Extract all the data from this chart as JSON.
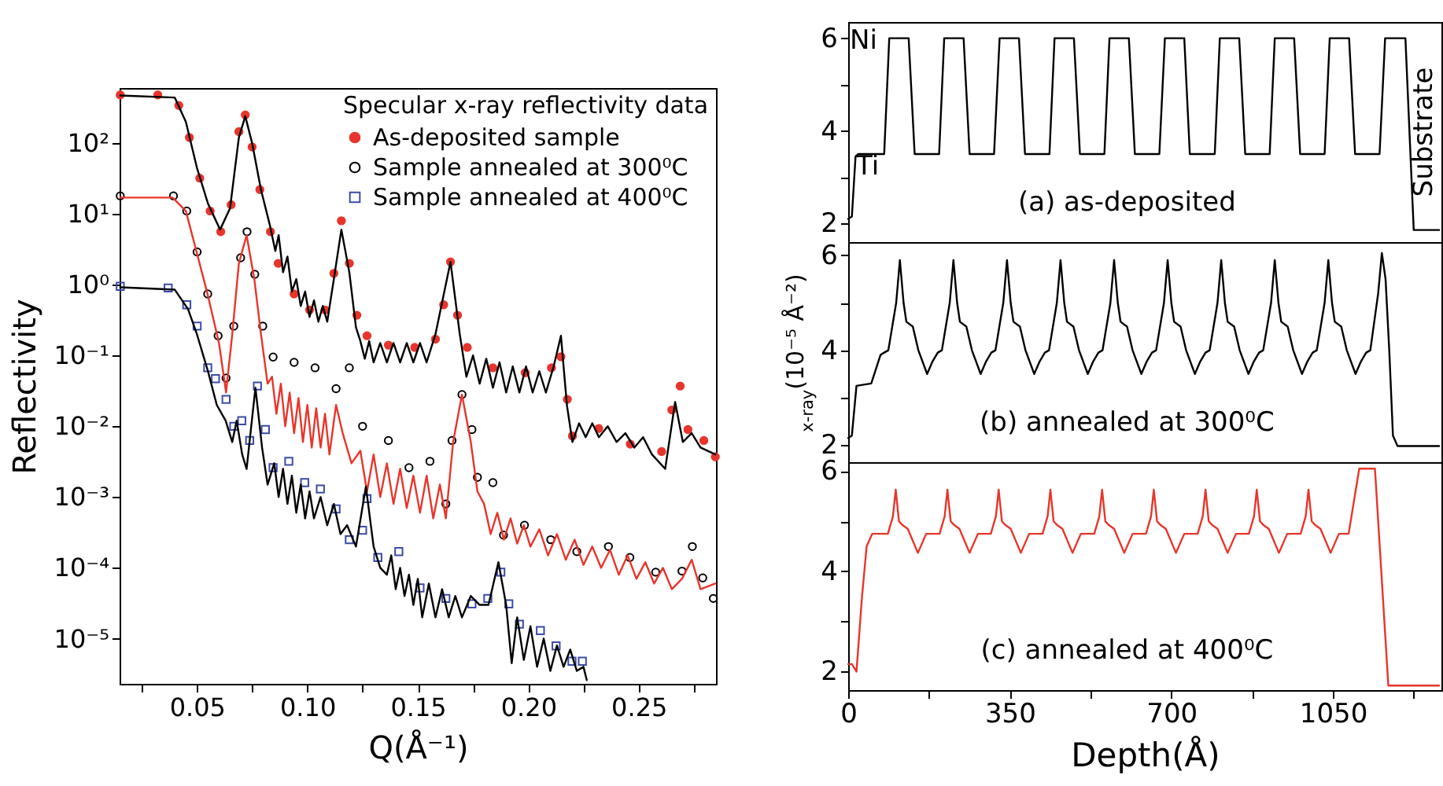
{
  "chart_data": [
    {
      "type": "scatter",
      "xlabel": "Q(Å⁻¹)",
      "ylabel": "Reflectivity",
      "legend_title": "Specular x-ray reflectivity data",
      "legend": "top right",
      "log": "y",
      "xlim": [
        0.015,
        0.285
      ],
      "ylim": [
        2.3e-06,
        600
      ],
      "xticks": [
        {
          "value": 0.025,
          "label": null
        },
        {
          "value": 0.05,
          "label": "0.05"
        },
        {
          "value": 0.075,
          "label": null
        },
        {
          "value": 0.1,
          "label": "0.10"
        },
        {
          "value": 0.125,
          "label": null
        },
        {
          "value": 0.15,
          "label": "0.15"
        },
        {
          "value": 0.175,
          "label": null
        },
        {
          "value": 0.2,
          "label": "0.20"
        },
        {
          "value": 0.225,
          "label": null
        },
        {
          "value": 0.25,
          "label": "0.25"
        },
        {
          "value": 0.275,
          "label": null
        }
      ],
      "yticks": [
        {
          "value": 100,
          "label": "10²"
        },
        {
          "value": 10,
          "label": "10¹"
        },
        {
          "value": 1,
          "label": "10⁰"
        },
        {
          "value": 0.1,
          "label": "10⁻¹"
        },
        {
          "value": 0.01,
          "label": "10⁻²"
        },
        {
          "value": 0.001,
          "label": "10⁻³"
        },
        {
          "value": 0.0001,
          "label": "10⁻⁴"
        },
        {
          "value": 1e-05,
          "label": "10⁻⁵"
        }
      ],
      "series": [
        {
          "name": "As-deposited sample",
          "type": "scatter",
          "marker": "circle",
          "color": "#e8352b",
          "x": [
            0.0153,
            0.0323,
            0.0418,
            0.0466,
            0.0513,
            0.056,
            0.0608,
            0.0655,
            0.069,
            0.0719,
            0.075,
            0.0785,
            0.0833,
            0.0868,
            0.094,
            0.101,
            0.108,
            0.112,
            0.1154,
            0.119,
            0.1224,
            0.127,
            0.1367,
            0.1486,
            0.158,
            0.1617,
            0.1648,
            0.168,
            0.1724,
            0.184,
            0.1986,
            0.2105,
            0.2148,
            0.2177,
            0.22,
            0.2319,
            0.2462,
            0.2604,
            0.265,
            0.2688,
            0.2723,
            0.2795,
            0.2847
          ],
          "values": [
            480,
            480,
            340,
            120,
            32,
            11,
            5.6,
            13.5,
            145,
            250,
            88,
            22,
            5.6,
            2,
            0.74,
            0.44,
            0.44,
            1.45,
            8,
            2,
            0.37,
            0.19,
            0.14,
            0.13,
            0.17,
            0.52,
            2.1,
            0.37,
            0.13,
            0.067,
            0.057,
            0.067,
            0.096,
            0.024,
            0.0073,
            0.0093,
            0.0056,
            0.0044,
            0.017,
            0.037,
            0.009,
            0.0063,
            0.0037
          ]
        },
        {
          "name": "Sample annealed at 300⁰C",
          "type": "scatter",
          "marker": "circle",
          "color": "#000000",
          "x": [
            0.0153,
            0.0394,
            0.0454,
            0.0501,
            0.0549,
            0.0596,
            0.0632,
            0.0667,
            0.0698,
            0.0727,
            0.0762,
            0.0798,
            0.0845,
            0.094,
            0.1035,
            0.113,
            0.119,
            0.125,
            0.1367,
            0.146,
            0.1555,
            0.1627,
            0.1655,
            0.17,
            0.1745,
            0.177,
            0.184,
            0.1888,
            0.1983,
            0.2102,
            0.222,
            0.2363,
            0.246,
            0.2577,
            0.2696,
            0.2743,
            0.279,
            0.2838
          ],
          "values": [
            18,
            18,
            11,
            2.9,
            0.74,
            0.19,
            0.048,
            0.26,
            2.4,
            5.6,
            1.4,
            0.26,
            0.095,
            0.08,
            0.067,
            0.034,
            0.067,
            0.01,
            0.0063,
            0.0026,
            0.0032,
            0.0008,
            0.0063,
            0.028,
            0.009,
            0.0019,
            0.0016,
            0.00029,
            0.0004,
            0.00025,
            0.00017,
            0.0002,
            0.00014,
            8.7e-05,
            9e-05,
            0.0002,
            7.2e-05,
            3.7e-05
          ]
        },
        {
          "name": "Sample annealed at 400⁰C",
          "type": "scatter",
          "marker": "square",
          "color": "#3b4ba8",
          "x": [
            0.0153,
            0.037,
            0.0454,
            0.0501,
            0.0549,
            0.0584,
            0.0632,
            0.0667,
            0.0703,
            0.0739,
            0.0774,
            0.081,
            0.0845,
            0.0916,
            0.0988,
            0.1059,
            0.113,
            0.119,
            0.125,
            0.127,
            0.1319,
            0.1414,
            0.151,
            0.1627,
            0.1745,
            0.1817,
            0.1876,
            0.1912,
            0.196,
            0.2055,
            0.2126,
            0.2198,
            0.2245
          ],
          "values": [
            0.95,
            0.9,
            0.52,
            0.26,
            0.067,
            0.047,
            0.024,
            0.01,
            0.012,
            0.0063,
            0.037,
            0.009,
            0.0026,
            0.0032,
            0.0016,
            0.0013,
            0.00068,
            0.00025,
            0.00034,
            0.00095,
            0.00014,
            0.00017,
            5.2e-05,
            3.7e-05,
            3.1e-05,
            3.7e-05,
            8.7e-05,
            3.1e-05,
            1.6e-05,
            1.3e-05,
            7.9e-06,
            4.8e-06,
            4.8e-06
          ]
        },
        {
          "type": "line",
          "color": "#000000",
          "x": [
            0.0153,
            0.04,
            0.045,
            0.05,
            0.055,
            0.0605,
            0.065,
            0.069,
            0.0719,
            0.075,
            0.079,
            0.083,
            0.0855,
            0.087,
            0.089,
            0.091,
            0.093,
            0.095,
            0.097,
            0.099,
            0.101,
            0.103,
            0.105,
            0.107,
            0.109,
            0.112,
            0.1154,
            0.119,
            0.122,
            0.124,
            0.126,
            0.128,
            0.13,
            0.133,
            0.136,
            0.139,
            0.142,
            0.145,
            0.148,
            0.151,
            0.154,
            0.158,
            0.1648,
            0.169,
            0.172,
            0.175,
            0.178,
            0.181,
            0.184,
            0.187,
            0.19,
            0.193,
            0.196,
            0.199,
            0.202,
            0.205,
            0.208,
            0.2115,
            0.2148,
            0.2175,
            0.22,
            0.223,
            0.226,
            0.229,
            0.232,
            0.236,
            0.24,
            0.244,
            0.248,
            0.252,
            0.256,
            0.262,
            0.2665,
            0.27,
            0.274,
            0.278,
            0.2847
          ],
          "values": [
            470,
            440,
            200,
            45,
            14,
            6,
            12,
            120,
            240,
            100,
            22,
            7,
            3,
            5,
            1.5,
            2.5,
            0.8,
            1.2,
            0.5,
            0.8,
            0.35,
            0.6,
            0.3,
            0.5,
            0.3,
            1.2,
            6,
            1.5,
            0.25,
            0.16,
            0.09,
            0.16,
            0.08,
            0.15,
            0.08,
            0.15,
            0.08,
            0.15,
            0.08,
            0.15,
            0.08,
            0.2,
            2.1,
            0.2,
            0.05,
            0.1,
            0.04,
            0.09,
            0.035,
            0.08,
            0.03,
            0.07,
            0.03,
            0.07,
            0.03,
            0.06,
            0.03,
            0.07,
            0.19,
            0.02,
            0.006,
            0.011,
            0.007,
            0.011,
            0.007,
            0.01,
            0.006,
            0.008,
            0.005,
            0.007,
            0.004,
            0.0025,
            0.022,
            0.006,
            0.008,
            0.005,
            0.004
          ]
        },
        {
          "type": "line",
          "color": "#e8352b",
          "x": [
            0.0153,
            0.039,
            0.045,
            0.05,
            0.055,
            0.06,
            0.0632,
            0.066,
            0.069,
            0.0725,
            0.076,
            0.079,
            0.082,
            0.084,
            0.086,
            0.088,
            0.09,
            0.092,
            0.094,
            0.096,
            0.098,
            0.1,
            0.102,
            0.104,
            0.106,
            0.108,
            0.11,
            0.113,
            0.116,
            0.12,
            0.124,
            0.127,
            0.13,
            0.133,
            0.136,
            0.139,
            0.142,
            0.145,
            0.148,
            0.151,
            0.154,
            0.157,
            0.16,
            0.1627,
            0.166,
            0.17,
            0.174,
            0.177,
            0.18,
            0.183,
            0.186,
            0.189,
            0.192,
            0.195,
            0.198,
            0.201,
            0.205,
            0.209,
            0.213,
            0.217,
            0.221,
            0.225,
            0.229,
            0.233,
            0.237,
            0.241,
            0.245,
            0.249,
            0.253,
            0.257,
            0.261,
            0.265,
            0.2696,
            0.274,
            0.278,
            0.2847
          ],
          "values": [
            17,
            17,
            11,
            2.8,
            0.7,
            0.15,
            0.03,
            0.2,
            2,
            5,
            1.2,
            0.2,
            0.04,
            0.05,
            0.015,
            0.04,
            0.01,
            0.03,
            0.008,
            0.025,
            0.006,
            0.02,
            0.005,
            0.018,
            0.005,
            0.015,
            0.004,
            0.02,
            0.008,
            0.003,
            0.0045,
            0.0012,
            0.004,
            0.001,
            0.003,
            0.0008,
            0.0025,
            0.0007,
            0.002,
            0.0006,
            0.002,
            0.0005,
            0.0015,
            0.0005,
            0.006,
            0.028,
            0.006,
            0.0012,
            0.0008,
            0.0003,
            0.0006,
            0.00025,
            0.0005,
            0.00022,
            0.0004,
            0.0002,
            0.00035,
            0.00015,
            0.0003,
            0.00013,
            0.00025,
            0.00011,
            0.0002,
            0.0001,
            0.00018,
            8e-05,
            0.00015,
            7e-05,
            0.00012,
            6e-05,
            0.0001,
            5e-05,
            7e-05,
            0.00013,
            5e-05,
            6e-05
          ]
        },
        {
          "type": "line",
          "color": "#000000",
          "x": [
            0.0153,
            0.04,
            0.046,
            0.05,
            0.055,
            0.059,
            0.063,
            0.066,
            0.068,
            0.0705,
            0.0725,
            0.0765,
            0.0795,
            0.082,
            0.085,
            0.087,
            0.089,
            0.091,
            0.093,
            0.095,
            0.097,
            0.099,
            0.101,
            0.103,
            0.106,
            0.109,
            0.112,
            0.115,
            0.118,
            0.122,
            0.1265,
            0.13,
            0.133,
            0.136,
            0.138,
            0.14,
            0.142,
            0.144,
            0.146,
            0.148,
            0.15,
            0.152,
            0.155,
            0.158,
            0.161,
            0.164,
            0.167,
            0.17,
            0.174,
            0.178,
            0.182,
            0.1865,
            0.19,
            0.1925,
            0.195,
            0.198,
            0.201,
            0.204,
            0.207,
            0.21,
            0.213,
            0.216,
            0.219,
            0.222,
            0.225,
            0.2265
          ],
          "values": [
            0.92,
            0.85,
            0.45,
            0.2,
            0.06,
            0.02,
            0.012,
            0.006,
            0.012,
            0.004,
            0.0025,
            0.035,
            0.005,
            0.0015,
            0.003,
            0.001,
            0.0025,
            0.0008,
            0.002,
            0.0006,
            0.0015,
            0.0005,
            0.0012,
            0.0005,
            0.001,
            0.0004,
            0.0008,
            0.0003,
            0.0004,
            0.0002,
            0.0014,
            0.0002,
            0.0001,
            8e-05,
            0.00015,
            5e-05,
            0.0001,
            4e-05,
            8e-05,
            3e-05,
            7e-05,
            2e-05,
            6e-05,
            2e-05,
            5e-05,
            2e-05,
            4e-05,
            2e-05,
            4e-05,
            3e-05,
            3e-05,
            0.00012,
            3e-05,
            4.5e-06,
            2e-05,
            5e-06,
            1.5e-05,
            4e-06,
            1e-05,
            3.5e-06,
            8e-06,
            4e-06,
            7e-06,
            3.5e-06,
            4e-06,
            2.6e-06
          ]
        }
      ]
    },
    {
      "type": "line",
      "xlim": [
        0,
        1285
      ],
      "ylim": [
        1.6,
        6.35
      ],
      "tick_labels": "y",
      "xticks": [
        {
          "value": 0,
          "label": null
        },
        {
          "value": 175,
          "label": null
        },
        {
          "value": 350,
          "label": null
        },
        {
          "value": 525,
          "label": null
        },
        {
          "value": 700,
          "label": null
        },
        {
          "value": 875,
          "label": null
        },
        {
          "value": 1050,
          "label": null
        },
        {
          "value": 1225,
          "label": null
        }
      ],
      "yticks": [
        2,
        {
          "value": 3,
          "label": null
        },
        4,
        {
          "value": 5,
          "label": null
        },
        6
      ],
      "annotations": [
        "(a) as-deposited",
        "Substrate",
        "Ni",
        "Ti"
      ],
      "series": [
        {
          "color": "#000000",
          "x": [
            0,
            8,
            16,
            22,
            78,
            89,
            131,
            144,
            197,
            208,
            250,
            263,
            316,
            328,
            370,
            383,
            436,
            447,
            489,
            502,
            555,
            566,
            608,
            621,
            674,
            686,
            728,
            740,
            794,
            805,
            847,
            860,
            913,
            924,
            966,
            979,
            1032,
            1043,
            1085,
            1098,
            1151,
            1163,
            1207,
            1225,
            1280
          ],
          "values": [
            2.1,
            2.15,
            3.45,
            3.5,
            3.5,
            6,
            6,
            3.5,
            3.5,
            6,
            6,
            3.5,
            3.5,
            6,
            6,
            3.5,
            3.5,
            6,
            6,
            3.5,
            3.5,
            6,
            6,
            3.5,
            3.5,
            6,
            6,
            3.5,
            3.5,
            6,
            6,
            3.5,
            3.5,
            6,
            6,
            3.5,
            3.5,
            6,
            6,
            3.5,
            3.5,
            6,
            6,
            1.86,
            1.86
          ]
        }
      ]
    },
    {
      "type": "line",
      "xlim": [
        0,
        1285
      ],
      "ylim": [
        1.64,
        6.28
      ],
      "tick_labels": "y",
      "ylabel": "$_{x-ray}$(10⁻⁵ Å⁻²)",
      "xticks": [
        {
          "value": 0,
          "label": null
        },
        {
          "value": 175,
          "label": null
        },
        {
          "value": 350,
          "label": null
        },
        {
          "value": 525,
          "label": null
        },
        {
          "value": 700,
          "label": null
        },
        {
          "value": 875,
          "label": null
        },
        {
          "value": 1050,
          "label": null
        },
        {
          "value": 1225,
          "label": null
        }
      ],
      "yticks": [
        2,
        {
          "value": 3,
          "label": null
        },
        4,
        {
          "value": 5,
          "label": null
        },
        6
      ],
      "annotations": [
        "(b) annealed at 300⁰C"
      ],
      "series": [
        {
          "color": "#000000",
          "x": [
            0,
            8,
            18,
            50,
            70,
            78,
            87,
            104,
            112,
            120,
            126,
            140,
            152,
            171,
            182,
            194,
            203,
            220,
            228,
            236,
            242,
            256,
            268,
            287,
            298,
            310,
            319,
            336,
            344,
            352,
            358,
            372,
            384,
            403,
            414,
            426,
            435,
            452,
            460,
            468,
            474,
            488,
            500,
            519,
            530,
            542,
            551,
            568,
            576,
            584,
            590,
            604,
            616,
            635,
            646,
            658,
            667,
            684,
            692,
            700,
            706,
            720,
            732,
            751,
            762,
            774,
            783,
            800,
            808,
            816,
            822,
            836,
            848,
            867,
            878,
            890,
            899,
            916,
            924,
            932,
            938,
            952,
            964,
            983,
            994,
            1006,
            1015,
            1032,
            1040,
            1048,
            1054,
            1068,
            1080,
            1099,
            1110,
            1122,
            1131,
            1148,
            1156,
            1164,
            1172,
            1180,
            1190,
            1280
          ],
          "values": [
            2.15,
            2.2,
            3.25,
            3.3,
            3.9,
            3.95,
            4.0,
            5.0,
            5.9,
            5.0,
            4.6,
            4.5,
            4.0,
            3.5,
            3.75,
            3.95,
            4.0,
            5.0,
            5.9,
            5.0,
            4.6,
            4.5,
            4.0,
            3.5,
            3.75,
            3.95,
            4.0,
            5.0,
            5.9,
            5.0,
            4.6,
            4.5,
            4.0,
            3.5,
            3.75,
            3.95,
            4.0,
            5.0,
            5.9,
            5.0,
            4.6,
            4.5,
            4.0,
            3.5,
            3.75,
            3.95,
            4.0,
            5.0,
            5.9,
            5.0,
            4.6,
            4.5,
            4.0,
            3.5,
            3.75,
            3.95,
            4.0,
            5.0,
            5.9,
            5.0,
            4.6,
            4.5,
            4.0,
            3.5,
            3.75,
            3.95,
            4.0,
            5.0,
            5.9,
            5.0,
            4.6,
            4.5,
            4.0,
            3.5,
            3.75,
            3.95,
            4.0,
            5.0,
            5.9,
            5.0,
            4.6,
            4.5,
            4.0,
            3.5,
            3.75,
            3.95,
            4.0,
            5.0,
            5.9,
            5.0,
            4.6,
            4.5,
            4.0,
            3.5,
            3.75,
            3.95,
            4.0,
            5.2,
            6.05,
            5.5,
            4.0,
            2.2,
            1.98,
            1.98
          ]
        }
      ]
    },
    {
      "type": "line",
      "xlim": [
        0,
        1285
      ],
      "ylim": [
        1.63,
        6.18
      ],
      "xlabel": "Depth(Å)",
      "xticks": [
        {
          "value": 0,
          "label": "0"
        },
        {
          "value": 175,
          "label": null
        },
        {
          "value": 350,
          "label": "350"
        },
        {
          "value": 525,
          "label": null
        },
        {
          "value": 700,
          "label": "700"
        },
        {
          "value": 875,
          "label": null
        },
        {
          "value": 1050,
          "label": "1050"
        },
        {
          "value": 1225,
          "label": null
        }
      ],
      "yticks": [
        2,
        {
          "value": 3,
          "label": null
        },
        4,
        {
          "value": 5,
          "label": null
        },
        6
      ],
      "annotations": [
        "(c) annealed at 400⁰C"
      ],
      "series": [
        {
          "color": "#e8352b",
          "x": [
            0,
            8,
            18,
            30,
            40,
            52,
            86,
            97,
            103,
            110,
            117,
            129,
            151,
            169,
            198,
            209,
            215,
            222,
            229,
            241,
            263,
            281,
            309,
            320,
            326,
            333,
            340,
            352,
            374,
            392,
            421,
            432,
            438,
            445,
            452,
            464,
            486,
            504,
            533,
            544,
            550,
            557,
            564,
            576,
            598,
            616,
            645,
            656,
            662,
            669,
            676,
            688,
            710,
            728,
            757,
            768,
            774,
            781,
            788,
            800,
            822,
            840,
            868,
            879,
            885,
            892,
            899,
            911,
            933,
            951,
            980,
            991,
            997,
            1004,
            1011,
            1023,
            1045,
            1063,
            1084,
            1107,
            1141,
            1170,
            1280
          ],
          "values": [
            2.15,
            2.15,
            2.0,
            3.5,
            4.5,
            4.75,
            4.75,
            5.1,
            5.63,
            5.0,
            4.93,
            4.85,
            4.37,
            4.75,
            4.75,
            5.1,
            5.63,
            5.0,
            4.93,
            4.85,
            4.37,
            4.75,
            4.75,
            5.1,
            5.63,
            5.0,
            4.93,
            4.85,
            4.37,
            4.75,
            4.75,
            5.1,
            5.63,
            5.0,
            4.93,
            4.85,
            4.37,
            4.75,
            4.75,
            5.1,
            5.63,
            5.0,
            4.93,
            4.85,
            4.37,
            4.75,
            4.75,
            5.1,
            5.63,
            5.0,
            4.93,
            4.85,
            4.37,
            4.75,
            4.75,
            5.1,
            5.63,
            5.0,
            4.93,
            4.85,
            4.37,
            4.75,
            4.75,
            5.1,
            5.63,
            5.0,
            4.93,
            4.85,
            4.37,
            4.75,
            4.75,
            5.1,
            5.63,
            5.0,
            4.93,
            4.85,
            4.37,
            4.75,
            4.75,
            6.05,
            6.05,
            1.72,
            1.72
          ]
        }
      ]
    }
  ]
}
